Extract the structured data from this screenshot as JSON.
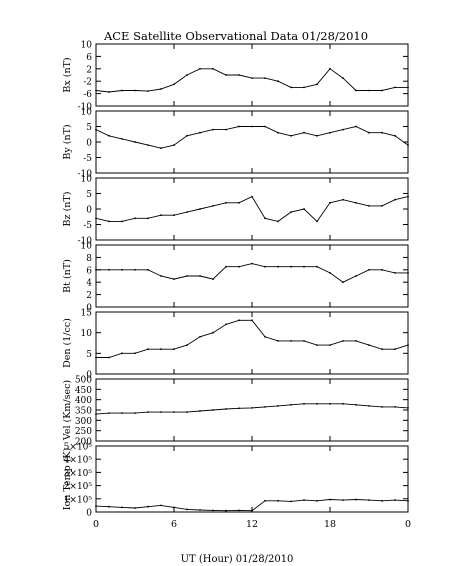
{
  "title": "ACE Satellite Observational Data   01/28/2010",
  "xlabel": "UT (Hour)   01/28/2010",
  "x_ticks": [
    "0",
    "6",
    "12",
    "18",
    "0"
  ],
  "chart_data": [
    {
      "type": "line",
      "ylabel": "Bx (nT)",
      "ylim": [
        -10,
        10
      ],
      "y_ticks": [
        "10",
        "6",
        "2",
        "-2",
        "-6",
        "-10"
      ],
      "x": [
        0,
        1,
        2,
        3,
        4,
        5,
        6,
        7,
        8,
        9,
        10,
        11,
        12,
        13,
        14,
        15,
        16,
        17,
        18,
        19,
        20,
        21,
        22,
        23,
        24
      ],
      "values": [
        -5,
        -5.5,
        -5,
        -5,
        -5.2,
        -4.5,
        -3,
        0,
        2,
        2,
        0,
        0,
        -1,
        -1,
        -2,
        -4,
        -4,
        -3,
        2,
        -1,
        -5,
        -5,
        -5,
        -4,
        -4
      ]
    },
    {
      "type": "line",
      "ylabel": "By (nT)",
      "ylim": [
        -10,
        10
      ],
      "y_ticks": [
        "10",
        "5",
        "0",
        "-5",
        "-10"
      ],
      "x": [
        0,
        1,
        2,
        3,
        4,
        5,
        6,
        7,
        8,
        9,
        10,
        11,
        12,
        13,
        14,
        15,
        16,
        17,
        18,
        19,
        20,
        21,
        22,
        23,
        24
      ],
      "values": [
        4,
        2,
        1,
        0,
        -1,
        -2,
        -1,
        2,
        3,
        4,
        4,
        5,
        5,
        5,
        3,
        2,
        3,
        2,
        3,
        4,
        5,
        3,
        3,
        2,
        -1
      ]
    },
    {
      "type": "line",
      "ylabel": "Bz (nT)",
      "ylim": [
        -10,
        10
      ],
      "y_ticks": [
        "10",
        "5",
        "0",
        "-5",
        "-10"
      ],
      "x": [
        0,
        1,
        2,
        3,
        4,
        5,
        6,
        7,
        8,
        9,
        10,
        11,
        12,
        13,
        14,
        15,
        16,
        17,
        18,
        19,
        20,
        21,
        22,
        23,
        24
      ],
      "values": [
        -3,
        -4,
        -4,
        -3,
        -3,
        -2,
        -2,
        -1,
        0,
        1,
        2,
        2,
        4,
        -3,
        -4,
        -1,
        0,
        -4,
        2,
        3,
        2,
        1,
        1,
        3,
        4
      ]
    },
    {
      "type": "line",
      "ylabel": "Bt (nT)",
      "ylim": [
        0,
        10
      ],
      "y_ticks": [
        "10",
        "8",
        "6",
        "4",
        "2",
        "0"
      ],
      "x": [
        0,
        1,
        2,
        3,
        4,
        5,
        6,
        7,
        8,
        9,
        10,
        11,
        12,
        13,
        14,
        15,
        16,
        17,
        18,
        19,
        20,
        21,
        22,
        23,
        24
      ],
      "values": [
        6,
        6,
        6,
        6,
        6,
        5,
        4.5,
        5,
        5,
        4.5,
        6.5,
        6.5,
        7,
        6.5,
        6.5,
        6.5,
        6.5,
        6.5,
        5.5,
        4,
        5,
        6,
        6,
        5.5,
        5.5
      ]
    },
    {
      "type": "line",
      "ylabel": "Den (1/cc)",
      "ylim": [
        0,
        15
      ],
      "y_ticks": [
        "15",
        "10",
        "5",
        "0"
      ],
      "x": [
        0,
        1,
        2,
        3,
        4,
        5,
        6,
        7,
        8,
        9,
        10,
        11,
        12,
        13,
        14,
        15,
        16,
        17,
        18,
        19,
        20,
        21,
        22,
        23,
        24
      ],
      "values": [
        4,
        4,
        5,
        5,
        6,
        6,
        6,
        7,
        9,
        10,
        12,
        13,
        13,
        9,
        8,
        8,
        8,
        7,
        7,
        8,
        8,
        7,
        6,
        6,
        7
      ]
    },
    {
      "type": "line",
      "ylabel": "Vel (Km/sec)",
      "ylim": [
        200,
        500
      ],
      "y_ticks": [
        "500",
        "450",
        "400",
        "350",
        "300",
        "250",
        "200"
      ],
      "x": [
        0,
        1,
        2,
        3,
        4,
        5,
        6,
        7,
        8,
        9,
        10,
        11,
        12,
        13,
        14,
        15,
        16,
        17,
        18,
        19,
        20,
        21,
        22,
        23,
        24
      ],
      "values": [
        330,
        335,
        335,
        335,
        340,
        340,
        340,
        340,
        345,
        350,
        355,
        358,
        360,
        365,
        370,
        375,
        380,
        380,
        380,
        380,
        375,
        370,
        365,
        365,
        360
      ]
    },
    {
      "type": "line",
      "ylabel": "Ion Temp (K)",
      "ylim": [
        0,
        500000
      ],
      "y_ticks": [
        "5×10⁵",
        "4×10⁵",
        "3×10⁵",
        "2×10⁵",
        "1×10⁵",
        "0"
      ],
      "x": [
        0,
        1,
        2,
        3,
        4,
        5,
        6,
        7,
        8,
        9,
        10,
        11,
        12,
        13,
        14,
        15,
        16,
        17,
        18,
        19,
        20,
        21,
        22,
        23,
        24
      ],
      "values": [
        45000,
        40000,
        35000,
        30000,
        40000,
        50000,
        35000,
        20000,
        15000,
        12000,
        10000,
        12000,
        10000,
        85000,
        85000,
        80000,
        90000,
        85000,
        95000,
        90000,
        95000,
        90000,
        85000,
        90000,
        85000
      ]
    }
  ]
}
